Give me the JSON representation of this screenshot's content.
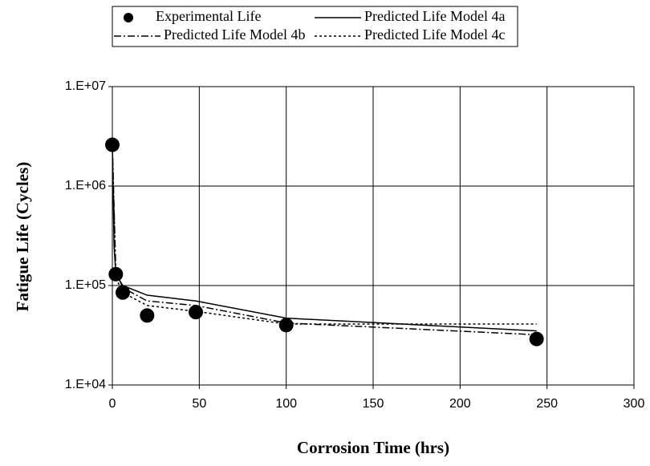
{
  "chart_data": {
    "type": "line",
    "xlabel": "Corrosion Time (hrs)",
    "ylabel": "Fatigue Life (Cycles)",
    "xlim": [
      0,
      300
    ],
    "xticks": [
      0,
      50,
      100,
      150,
      200,
      250,
      300
    ],
    "ylim": [
      10000,
      10000000
    ],
    "yticks": [
      {
        "value": 10000,
        "label": "1.E+04"
      },
      {
        "value": 100000,
        "label": "1.E+05"
      },
      {
        "value": 1000000,
        "label": "1.E+06"
      },
      {
        "value": 10000000,
        "label": "1.E+07"
      }
    ],
    "ylog": true,
    "grid": true,
    "legend": "top",
    "series": [
      {
        "name": "Experimental Life",
        "color": "#000000",
        "style": "markers",
        "x": [
          0,
          2,
          6,
          20,
          48,
          100,
          244
        ],
        "values": [
          2600000,
          130000,
          85000,
          50000,
          54000,
          40000,
          29000
        ]
      },
      {
        "name": "Predicted Life Model 4a",
        "color": "#000000",
        "style": "solid",
        "x": [
          0,
          1,
          2,
          6,
          20,
          48,
          100,
          244
        ],
        "values": [
          2800000,
          250000,
          130000,
          100000,
          80000,
          70000,
          47000,
          35000
        ]
      },
      {
        "name": "Predicted Life Model 4b",
        "color": "#000000",
        "style": "dashdot",
        "x": [
          0,
          2,
          6,
          20,
          48,
          100,
          244
        ],
        "values": [
          2600000,
          140000,
          95000,
          70000,
          63000,
          42000,
          32000
        ]
      },
      {
        "name": "Predicted Life Model 4c",
        "color": "#000000",
        "style": "dotted",
        "x": [
          0,
          2,
          6,
          20,
          48,
          100,
          244
        ],
        "values": [
          2400000,
          120000,
          85000,
          63000,
          55000,
          41000,
          41000
        ]
      }
    ]
  }
}
